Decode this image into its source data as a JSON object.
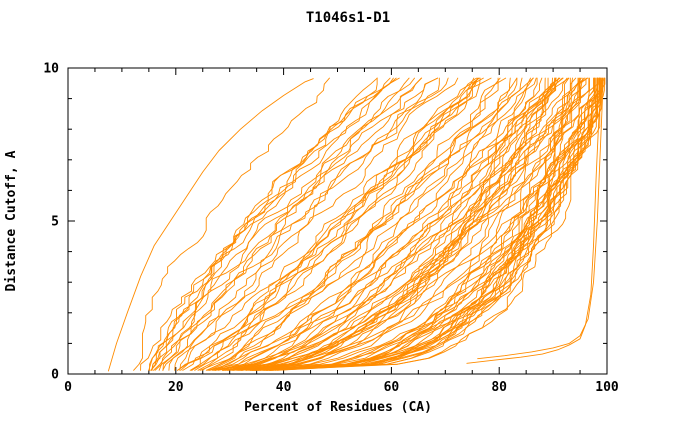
{
  "page": {
    "background": "#ffffff"
  },
  "chart_data": {
    "type": "line",
    "title": "T1046s1-D1",
    "xlabel": "Percent of Residues (CA)",
    "ylabel": "Distance Cutoff, A",
    "xlim": [
      0,
      100
    ],
    "ylim": [
      0,
      10
    ],
    "x_major_ticks": [
      0,
      20,
      40,
      60,
      80,
      100
    ],
    "x_minor_step": 5,
    "y_major_ticks": [
      0,
      5,
      10
    ],
    "y_minor_step": 1,
    "grid": false,
    "legend": "none",
    "line_color": "#ff8c00",
    "description": "Cumulative GDT-style plot: many overlapping orange model curves, each monotonically increasing percent of CA residues fit as the distance cutoff grows. Dense bundle of good models sweeps right and hugs the lower-right; poorer models rise steeply on the left reaching only ~45-60% by 9.6 A; best outlier models sit along the bottom-right near 75-99% under 1 A; several curves run vertically at ~98-100% on the right edge.",
    "explicit_curves": [
      {
        "name": "worst-model-left-envelope",
        "points": [
          [
            7.5,
            0.1
          ],
          [
            9,
            1.0
          ],
          [
            11,
            2.0
          ],
          [
            13.5,
            3.2
          ],
          [
            16,
            4.2
          ],
          [
            19,
            5.0
          ],
          [
            22,
            5.8
          ],
          [
            25,
            6.6
          ],
          [
            28,
            7.3
          ],
          [
            32,
            8.0
          ],
          [
            36,
            8.6
          ],
          [
            40,
            9.1
          ],
          [
            44,
            9.55
          ],
          [
            45.5,
            9.65
          ]
        ]
      },
      {
        "name": "best-outlier-1",
        "points": [
          [
            74,
            0.35
          ],
          [
            79,
            0.45
          ],
          [
            84,
            0.55
          ],
          [
            88,
            0.65
          ],
          [
            91,
            0.8
          ],
          [
            93,
            0.95
          ],
          [
            95,
            1.15
          ],
          [
            96,
            1.6
          ],
          [
            97,
            2.6
          ],
          [
            97.5,
            4.2
          ],
          [
            98,
            6.5
          ],
          [
            98.5,
            8.4
          ],
          [
            99,
            9.6
          ]
        ]
      },
      {
        "name": "best-outlier-2",
        "points": [
          [
            76,
            0.5
          ],
          [
            81,
            0.6
          ],
          [
            86,
            0.72
          ],
          [
            90,
            0.85
          ],
          [
            93,
            1.0
          ],
          [
            95,
            1.25
          ],
          [
            96.5,
            1.8
          ],
          [
            97.5,
            3.0
          ],
          [
            98.2,
            5.0
          ],
          [
            98.8,
            7.5
          ],
          [
            99.3,
            9.6
          ]
        ]
      }
    ],
    "ensemble": {
      "n_curves": 92,
      "seed": 20,
      "steps": 48,
      "y_start": 0.12,
      "y_end": 9.67,
      "quality_bias_exponent": 0.45,
      "x_start_range": [
        7,
        37
      ],
      "x_end_range": [
        45,
        100
      ],
      "shape_exponent_worst_best": [
        1.6,
        0.25
      ],
      "noise_amplitude": 2.2,
      "noise_decay": 0.72,
      "right_edge_cap_range": [
        97.5,
        100
      ]
    }
  }
}
